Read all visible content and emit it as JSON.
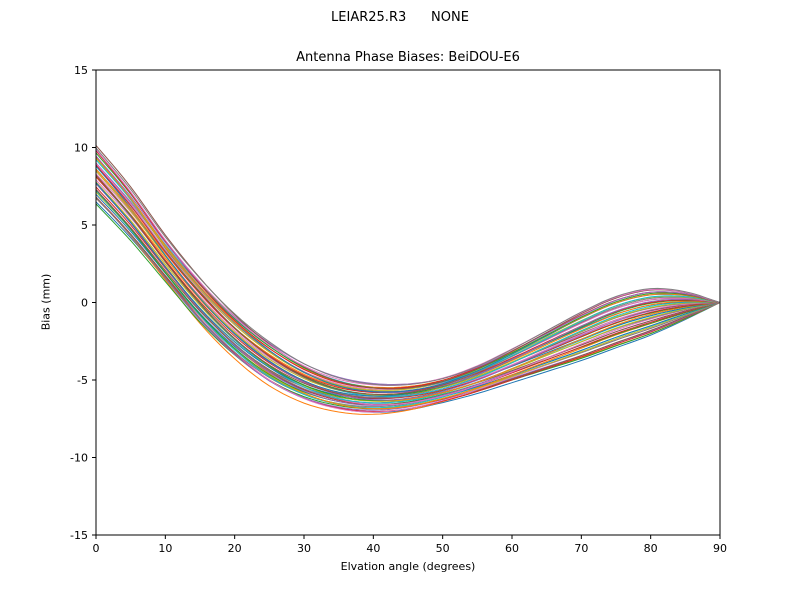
{
  "chart_data": {
    "type": "line",
    "suptitle": "LEIAR25.R3      NONE",
    "title": "Antenna Phase Biases: BeiDOU-E6",
    "xlabel": "Elvation angle (degrees)",
    "ylabel": "Bias (mm)",
    "xlim": [
      0,
      90
    ],
    "ylim": [
      -15,
      15
    ],
    "xticks": [
      0,
      10,
      20,
      30,
      40,
      50,
      60,
      70,
      80,
      90
    ],
    "yticks": [
      -15,
      -10,
      -5,
      0,
      5,
      10,
      15
    ],
    "grid": false,
    "legend": "none",
    "x": [
      0,
      5,
      10,
      15,
      20,
      25,
      30,
      35,
      40,
      45,
      50,
      55,
      60,
      65,
      70,
      75,
      80,
      85,
      90
    ],
    "band": {
      "upper": [
        10.0,
        7.3,
        4.2,
        1.5,
        -0.8,
        -2.6,
        -4.0,
        -4.9,
        -5.3,
        -5.3,
        -4.9,
        -4.1,
        -3.0,
        -1.8,
        -0.6,
        0.4,
        0.9,
        0.7,
        0.0
      ],
      "lower": [
        6.5,
        4.1,
        1.4,
        -1.3,
        -3.5,
        -5.2,
        -6.3,
        -6.9,
        -7.1,
        -6.9,
        -6.4,
        -5.8,
        -5.1,
        -4.4,
        -3.7,
        -2.9,
        -2.1,
        -1.1,
        0.0
      ]
    },
    "n_lines": 48,
    "line_colors": [
      "#1f77b4",
      "#ff7f0e",
      "#2ca02c",
      "#d62728",
      "#9467bd",
      "#8c564b",
      "#e377c2",
      "#7f7f7f",
      "#bcbd22",
      "#17becf"
    ],
    "frame_color": "#000000",
    "tick_color": "#000000"
  }
}
